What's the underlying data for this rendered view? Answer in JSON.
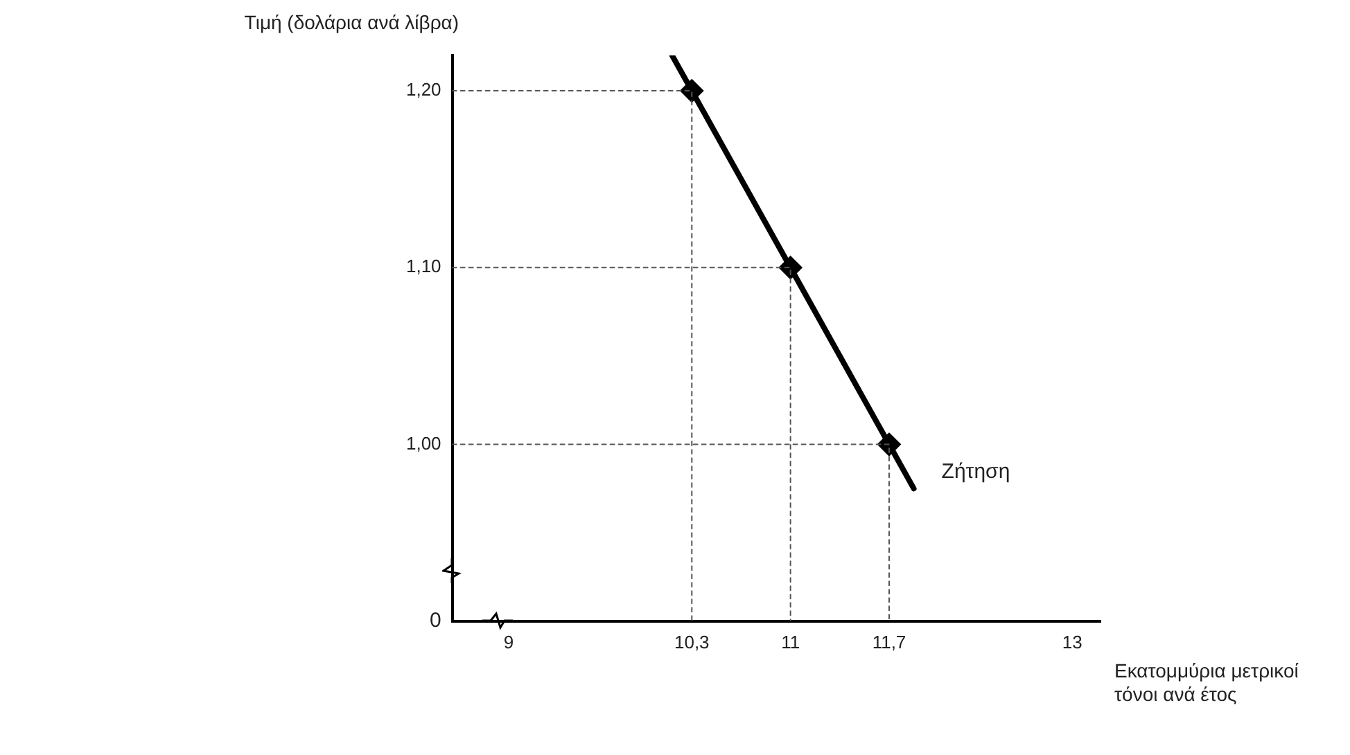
{
  "chart_data": {
    "type": "line",
    "xlabel": "Εκατομμύρια μετρικοί τόνοι ανά έτος",
    "ylabel": "Τιμή (δολάρια ανά λίβρα)",
    "xlim": [
      8.6,
      13.2
    ],
    "xticks": [
      9,
      {
        "value": 10.3,
        "label": "10,3"
      },
      11,
      {
        "value": 11.7,
        "label": "11,7"
      },
      13
    ],
    "ylim": [
      0.9,
      1.22
    ],
    "yticks": [
      {
        "value": 1.0,
        "label": "1,00"
      },
      {
        "value": 1.1,
        "label": "1,10"
      },
      {
        "value": 1.2,
        "label": "1,20"
      }
    ],
    "grid": false,
    "legend": false,
    "annotations": [
      "0"
    ],
    "series": [
      {
        "color": "#555555",
        "line_style": "dotted",
        "marker": "none",
        "x": [
          8.6,
          10.3,
          10.3
        ],
        "values": [
          1.2,
          1.2,
          0.9
        ]
      },
      {
        "color": "#555555",
        "line_style": "dotted",
        "marker": "none",
        "x": [
          8.6,
          11,
          11
        ],
        "values": [
          1.1,
          1.1,
          0.9
        ]
      },
      {
        "color": "#555555",
        "line_style": "dotted",
        "marker": "none",
        "x": [
          8.6,
          11.7,
          11.7
        ],
        "values": [
          1.0,
          1.0,
          0.9
        ]
      },
      {
        "name": "Ζήτηση",
        "color": "#000000",
        "marker": "none",
        "x": [
          10.16,
          10.3,
          11,
          11.7,
          11.875
        ],
        "values": [
          1.22,
          1.2,
          1.1,
          1.0,
          0.975
        ]
      },
      {
        "type": "scatter",
        "color": "#000000",
        "marker": "diamond",
        "x": [
          10.3,
          11,
          11.7
        ],
        "values": [
          1.2,
          1.1,
          1.0
        ]
      }
    ]
  }
}
